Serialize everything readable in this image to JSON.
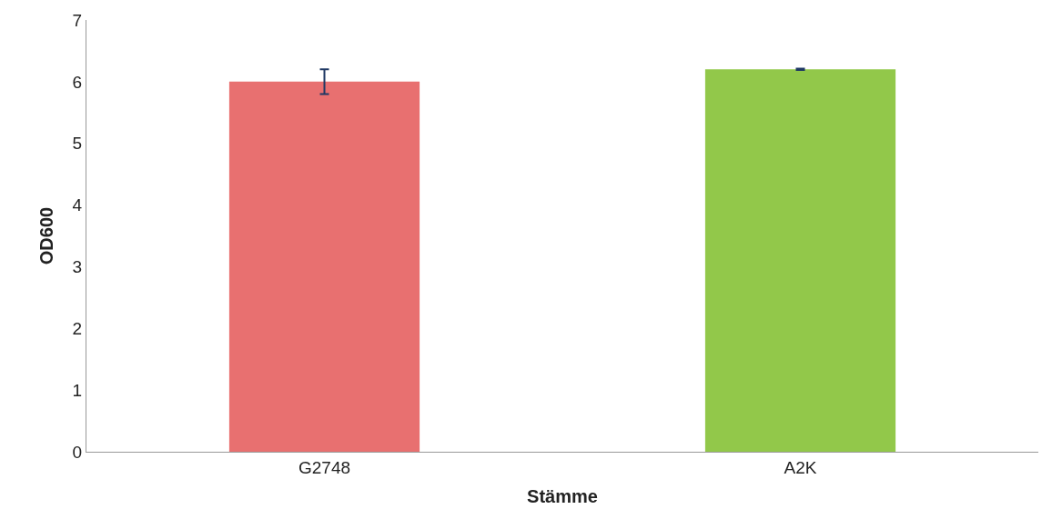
{
  "chart_data": {
    "type": "bar",
    "xlabel": "Stämme",
    "ylabel": "OD600",
    "categories": [
      "G2748",
      "A2K"
    ],
    "values": [
      6.0,
      6.2
    ],
    "colors": [
      "#e87070",
      "#92c84a"
    ],
    "errors": [
      0.2,
      0.01
    ],
    "ylim": [
      0,
      7
    ],
    "yticks": [
      0,
      1,
      2,
      3,
      4,
      5,
      6,
      7
    ]
  }
}
